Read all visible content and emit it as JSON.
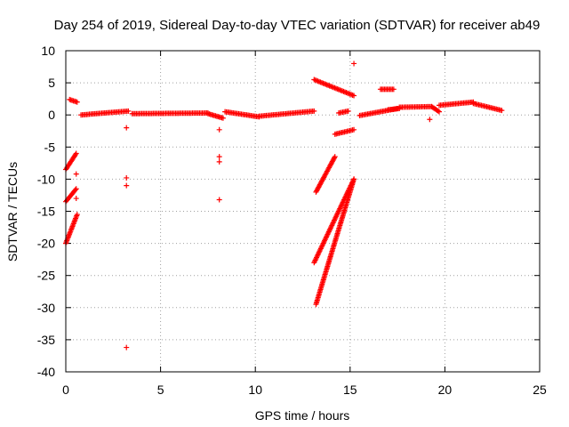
{
  "chart_data": {
    "type": "scatter",
    "title": "Day 254 of 2019, Sidereal Day-to-day VTEC variation (SDTVAR) for receiver ab49",
    "xlabel": "GPS time / hours",
    "ylabel": "SDTVAR / TECUs",
    "xlim": [
      0,
      25
    ],
    "ylim": [
      -40,
      10
    ],
    "xticks": [
      0,
      5,
      10,
      15,
      20,
      25
    ],
    "yticks": [
      10,
      5,
      0,
      -5,
      -10,
      -15,
      -20,
      -25,
      -30,
      -35,
      -40
    ],
    "xtick_labels": [
      "0",
      "5",
      "10",
      "15",
      "20",
      "25"
    ],
    "ytick_labels": [
      "10",
      "5",
      "0",
      "-5",
      "-10",
      "-15",
      "-20",
      "-25",
      "-30",
      "-35",
      "-40"
    ],
    "grid": true,
    "marker": "+",
    "color": "#ff0000",
    "segments": [
      {
        "x0": 0.0,
        "y0": -8.5,
        "x1": 0.55,
        "y1": -6.0
      },
      {
        "x0": 0.0,
        "y0": -13.5,
        "x1": 0.55,
        "y1": -11.5
      },
      {
        "x0": 0.0,
        "y0": -20.0,
        "x1": 0.6,
        "y1": -15.5
      },
      {
        "x0": 0.2,
        "y0": 2.4,
        "x1": 0.6,
        "y1": 2.0
      },
      {
        "x0": 0.8,
        "y0": 0.0,
        "x1": 3.3,
        "y1": 0.6
      },
      {
        "x0": 3.5,
        "y0": 0.2,
        "x1": 7.5,
        "y1": 0.3
      },
      {
        "x0": 7.5,
        "y0": 0.2,
        "x1": 8.3,
        "y1": -0.5
      },
      {
        "x0": 8.4,
        "y0": 0.5,
        "x1": 10.2,
        "y1": -0.3
      },
      {
        "x0": 10.2,
        "y0": -0.2,
        "x1": 13.1,
        "y1": 0.6
      },
      {
        "x0": 13.1,
        "y0": 5.5,
        "x1": 15.2,
        "y1": 3.0
      },
      {
        "x0": 13.2,
        "y0": -12.0,
        "x1": 14.2,
        "y1": -6.5
      },
      {
        "x0": 13.1,
        "y0": -23.0,
        "x1": 15.2,
        "y1": -10.0
      },
      {
        "x0": 13.2,
        "y0": -29.5,
        "x1": 15.2,
        "y1": -10.0
      },
      {
        "x0": 14.2,
        "y0": -3.0,
        "x1": 15.2,
        "y1": -2.3
      },
      {
        "x0": 14.4,
        "y0": 0.3,
        "x1": 14.9,
        "y1": 0.6
      },
      {
        "x0": 15.5,
        "y0": -0.1,
        "x1": 17.5,
        "y1": 1.0
      },
      {
        "x0": 16.6,
        "y0": 4.0,
        "x1": 17.3,
        "y1": 4.0
      },
      {
        "x0": 17.0,
        "y0": 0.8,
        "x1": 17.6,
        "y1": 1.0
      },
      {
        "x0": 17.6,
        "y0": 1.2,
        "x1": 19.3,
        "y1": 1.3
      },
      {
        "x0": 19.3,
        "y0": 1.3,
        "x1": 19.7,
        "y1": 0.5
      },
      {
        "x0": 19.7,
        "y0": 1.5,
        "x1": 21.5,
        "y1": 2.0
      },
      {
        "x0": 21.5,
        "y0": 1.8,
        "x1": 23.0,
        "y1": 0.7
      }
    ],
    "points": [
      {
        "x": 0.55,
        "y": -9.2
      },
      {
        "x": 0.55,
        "y": -13.0
      },
      {
        "x": 3.2,
        "y": -2.0
      },
      {
        "x": 3.2,
        "y": -9.8
      },
      {
        "x": 3.2,
        "y": -11.0
      },
      {
        "x": 3.2,
        "y": -36.2
      },
      {
        "x": 8.1,
        "y": -2.3
      },
      {
        "x": 8.1,
        "y": -6.5
      },
      {
        "x": 8.1,
        "y": -7.3
      },
      {
        "x": 8.1,
        "y": -13.2
      },
      {
        "x": 15.2,
        "y": 8.0
      },
      {
        "x": 19.2,
        "y": -0.7
      }
    ]
  }
}
